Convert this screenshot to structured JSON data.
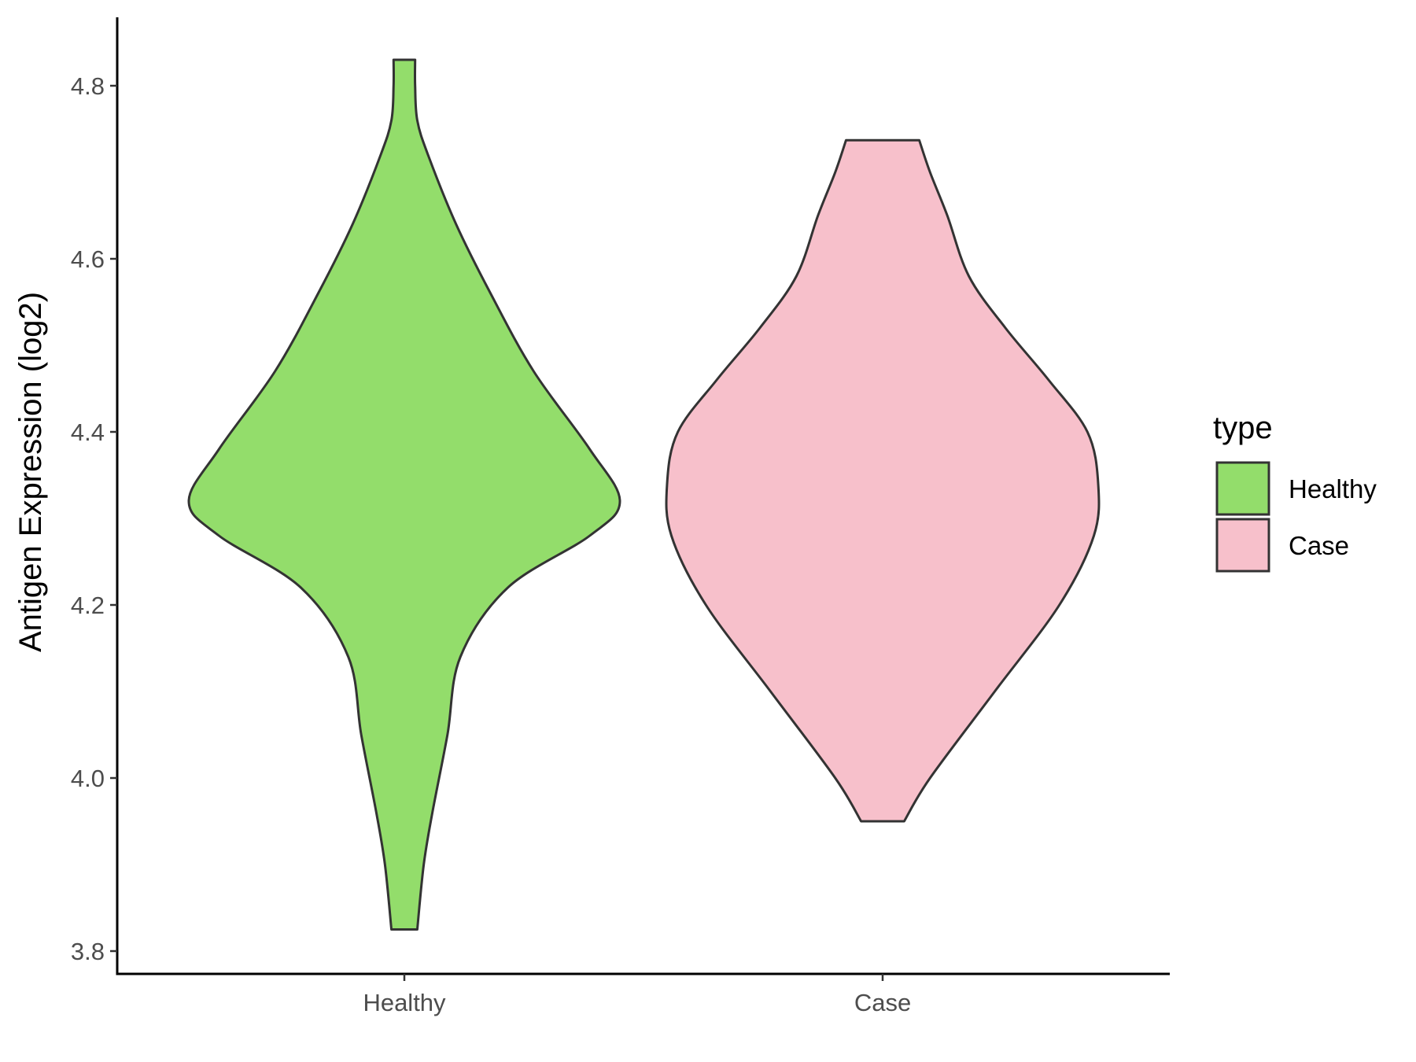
{
  "chart_data": {
    "type": "violin",
    "title": "",
    "xlabel": "",
    "ylabel": "Antigen Expression (log2)",
    "categories": [
      "Healthy",
      "Case"
    ],
    "ylim": [
      3.78,
      4.87
    ],
    "yticks": [
      3.8,
      4.0,
      4.2,
      4.4,
      4.6,
      4.8
    ],
    "ytick_labels": [
      "3.8",
      "4.0",
      "4.2",
      "4.4",
      "4.6",
      "4.8"
    ],
    "grid": false,
    "legend": {
      "title": "type",
      "placement": "right",
      "entries": [
        "Healthy",
        "Case"
      ]
    },
    "series": [
      {
        "name": "Healthy",
        "color": "#93dd6b",
        "min": 3.825,
        "max": 4.83,
        "profile": [
          {
            "y": 3.825,
            "w": 0.06
          },
          {
            "y": 3.9,
            "w": 0.09
          },
          {
            "y": 3.96,
            "w": 0.13
          },
          {
            "y": 4.05,
            "w": 0.2
          },
          {
            "y": 4.14,
            "w": 0.26
          },
          {
            "y": 4.22,
            "w": 0.48
          },
          {
            "y": 4.28,
            "w": 0.86
          },
          {
            "y": 4.32,
            "w": 1.0
          },
          {
            "y": 4.38,
            "w": 0.86
          },
          {
            "y": 4.47,
            "w": 0.6
          },
          {
            "y": 4.56,
            "w": 0.4
          },
          {
            "y": 4.64,
            "w": 0.24
          },
          {
            "y": 4.72,
            "w": 0.11
          },
          {
            "y": 4.76,
            "w": 0.06
          },
          {
            "y": 4.8,
            "w": 0.05
          },
          {
            "y": 4.83,
            "w": 0.05
          }
        ]
      },
      {
        "name": "Case",
        "color": "#f7c0cb",
        "min": 3.95,
        "max": 4.737,
        "profile": [
          {
            "y": 3.95,
            "w": 0.1
          },
          {
            "y": 4.0,
            "w": 0.22
          },
          {
            "y": 4.1,
            "w": 0.52
          },
          {
            "y": 4.2,
            "w": 0.82
          },
          {
            "y": 4.28,
            "w": 0.98
          },
          {
            "y": 4.34,
            "w": 1.0
          },
          {
            "y": 4.4,
            "w": 0.95
          },
          {
            "y": 4.46,
            "w": 0.77
          },
          {
            "y": 4.52,
            "w": 0.57
          },
          {
            "y": 4.58,
            "w": 0.4
          },
          {
            "y": 4.65,
            "w": 0.3
          },
          {
            "y": 4.7,
            "w": 0.22
          },
          {
            "y": 4.737,
            "w": 0.17
          }
        ]
      }
    ]
  }
}
